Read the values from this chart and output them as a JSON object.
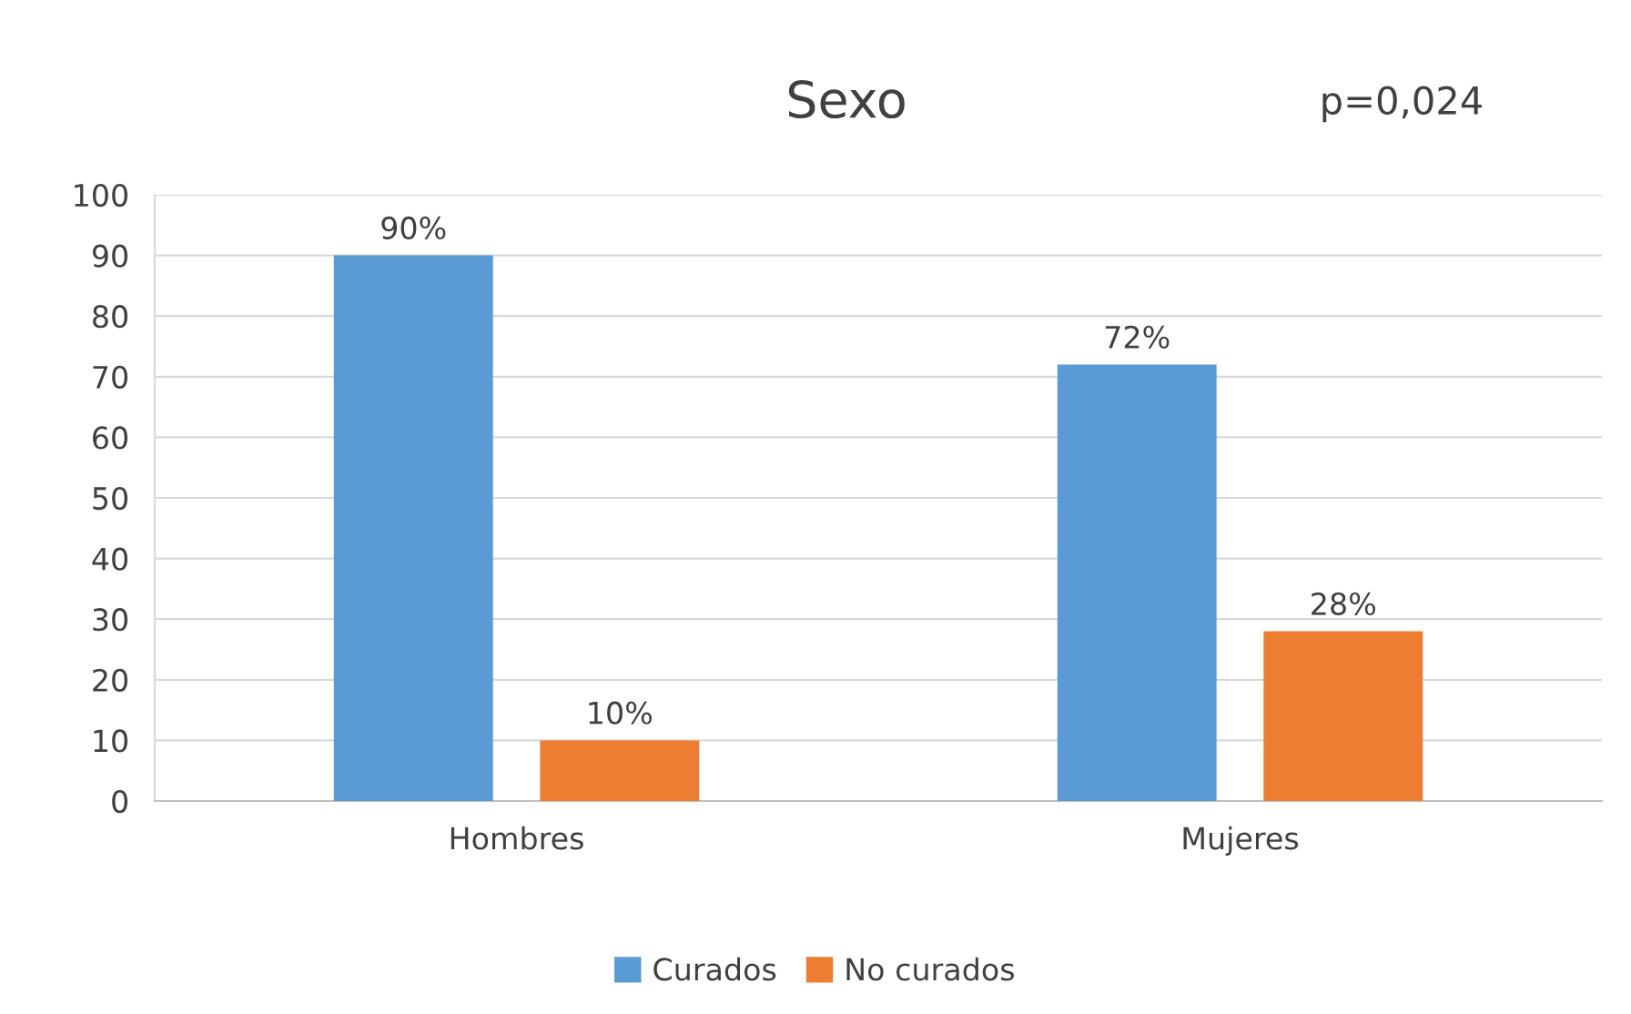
{
  "chart_data": {
    "type": "bar",
    "title": "Sexo",
    "annotations": [
      "p=0,024"
    ],
    "categories": [
      "Hombres",
      "Mujeres"
    ],
    "series": [
      {
        "name": "Curados",
        "color": "#5b9bd5",
        "values": [
          90,
          72
        ],
        "value_labels": [
          "90%",
          "72%"
        ]
      },
      {
        "name": "No curados",
        "color": "#ed7d31",
        "values": [
          10,
          28
        ],
        "value_labels": [
          "10%",
          "28%"
        ]
      }
    ],
    "ylim": [
      0,
      100
    ],
    "yticks": [
      0,
      10,
      20,
      30,
      40,
      50,
      60,
      70,
      80,
      90,
      100
    ],
    "grid": "y",
    "legend": "bottom"
  }
}
